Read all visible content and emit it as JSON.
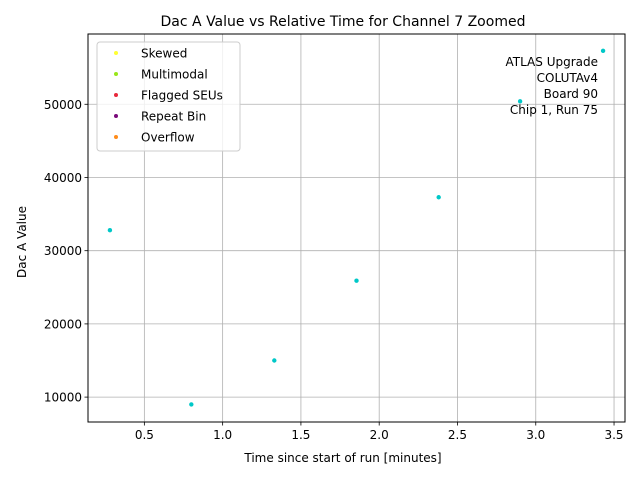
{
  "chart_data": {
    "type": "scatter",
    "title": "Dac A Value vs Relative Time for Channel 7 Zoomed",
    "xlabel": "Time since start of run [minutes]",
    "ylabel": "Dac A Value",
    "xlim": [
      0.14,
      3.57
    ],
    "ylim": [
      6600,
      59600
    ],
    "xticks": [
      0.5,
      1.0,
      1.5,
      2.0,
      2.5,
      3.0,
      3.5
    ],
    "xtick_labels": [
      "0.5",
      "1.0",
      "1.5",
      "2.0",
      "2.5",
      "3.0",
      "3.5"
    ],
    "yticks": [
      10000,
      20000,
      30000,
      40000,
      50000
    ],
    "ytick_labels": [
      "10000",
      "20000",
      "30000",
      "40000",
      "50000"
    ],
    "grid": true,
    "legend_position": "top-left",
    "series": [
      {
        "color": "#00c8c8",
        "x": [
          0.28,
          0.8,
          1.33,
          1.855,
          2.38,
          2.9,
          3.43
        ],
        "y": [
          32800,
          9000,
          15000,
          25900,
          37300,
          50400,
          57300
        ]
      }
    ],
    "legend": [
      {
        "label": "Skewed",
        "color": "#ffff33"
      },
      {
        "label": "Multimodal",
        "color": "#99e619"
      },
      {
        "label": "Flagged SEUs",
        "color": "#e8283c"
      },
      {
        "label": "Repeat Bin",
        "color": "#7a0a7a"
      },
      {
        "label": "Overflow",
        "color": "#ff8c1a"
      }
    ],
    "annotation": [
      "ATLAS Upgrade",
      "COLUTAv4",
      "Board 90",
      "Chip 1, Run 75"
    ]
  }
}
